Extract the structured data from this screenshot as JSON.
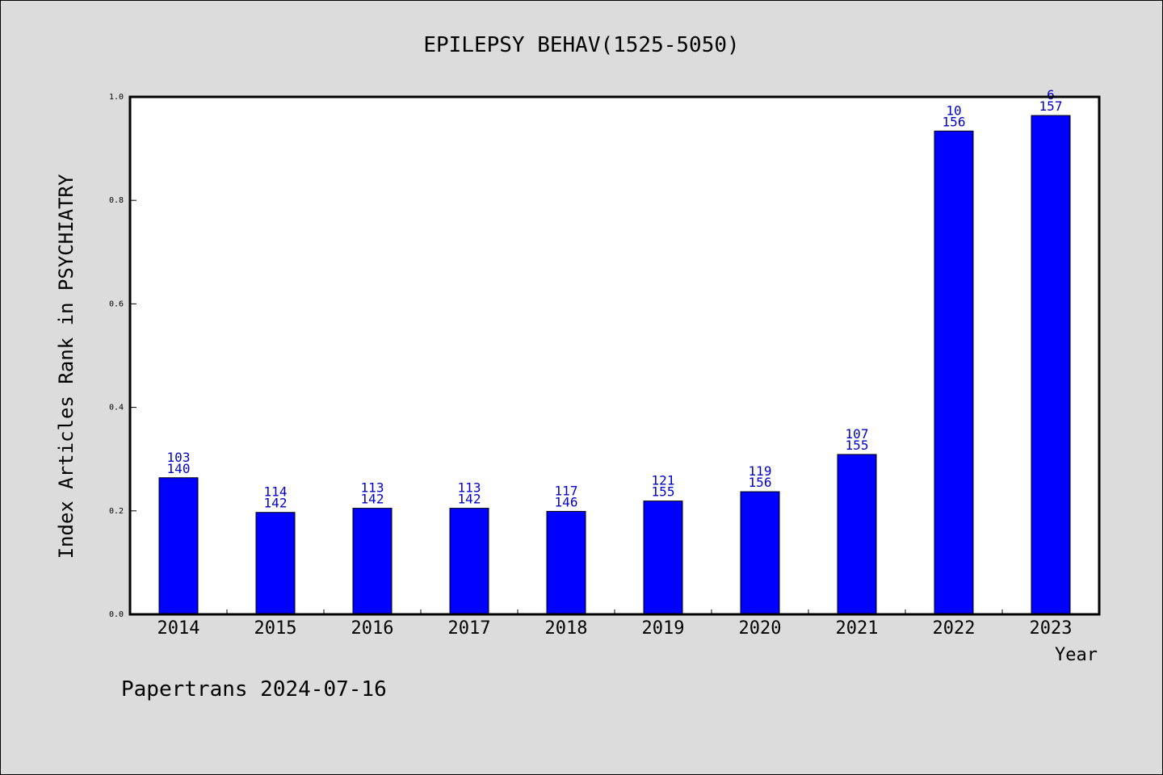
{
  "chart_data": {
    "type": "bar",
    "title": "EPILEPSY BEHAV(1525-5050)",
    "xlabel": "Year",
    "ylabel": "Index Articles Rank in PSYCHIATRY",
    "categories": [
      "2014",
      "2015",
      "2016",
      "2017",
      "2018",
      "2019",
      "2020",
      "2021",
      "2022",
      "2023"
    ],
    "values": [
      0.264,
      0.197,
      0.205,
      0.205,
      0.199,
      0.219,
      0.237,
      0.309,
      0.934,
      0.964
    ],
    "rank_labels": [
      "103",
      "114",
      "113",
      "113",
      "117",
      "121",
      "119",
      "107",
      "10",
      "6"
    ],
    "total_labels": [
      "140",
      "142",
      "142",
      "142",
      "146",
      "155",
      "156",
      "155",
      "156",
      "157"
    ],
    "ylim": [
      0,
      1.0
    ],
    "yticks": [
      "0.0",
      "0.2",
      "0.4",
      "0.6",
      "0.8",
      "1.0"
    ],
    "bar_color": "#0000ff",
    "label_color": "#0000cc",
    "background_color": "#dcdcdc",
    "plot_background": "#ffffff",
    "grid": false
  },
  "footer": {
    "text": "Papertrans 2024-07-16"
  }
}
